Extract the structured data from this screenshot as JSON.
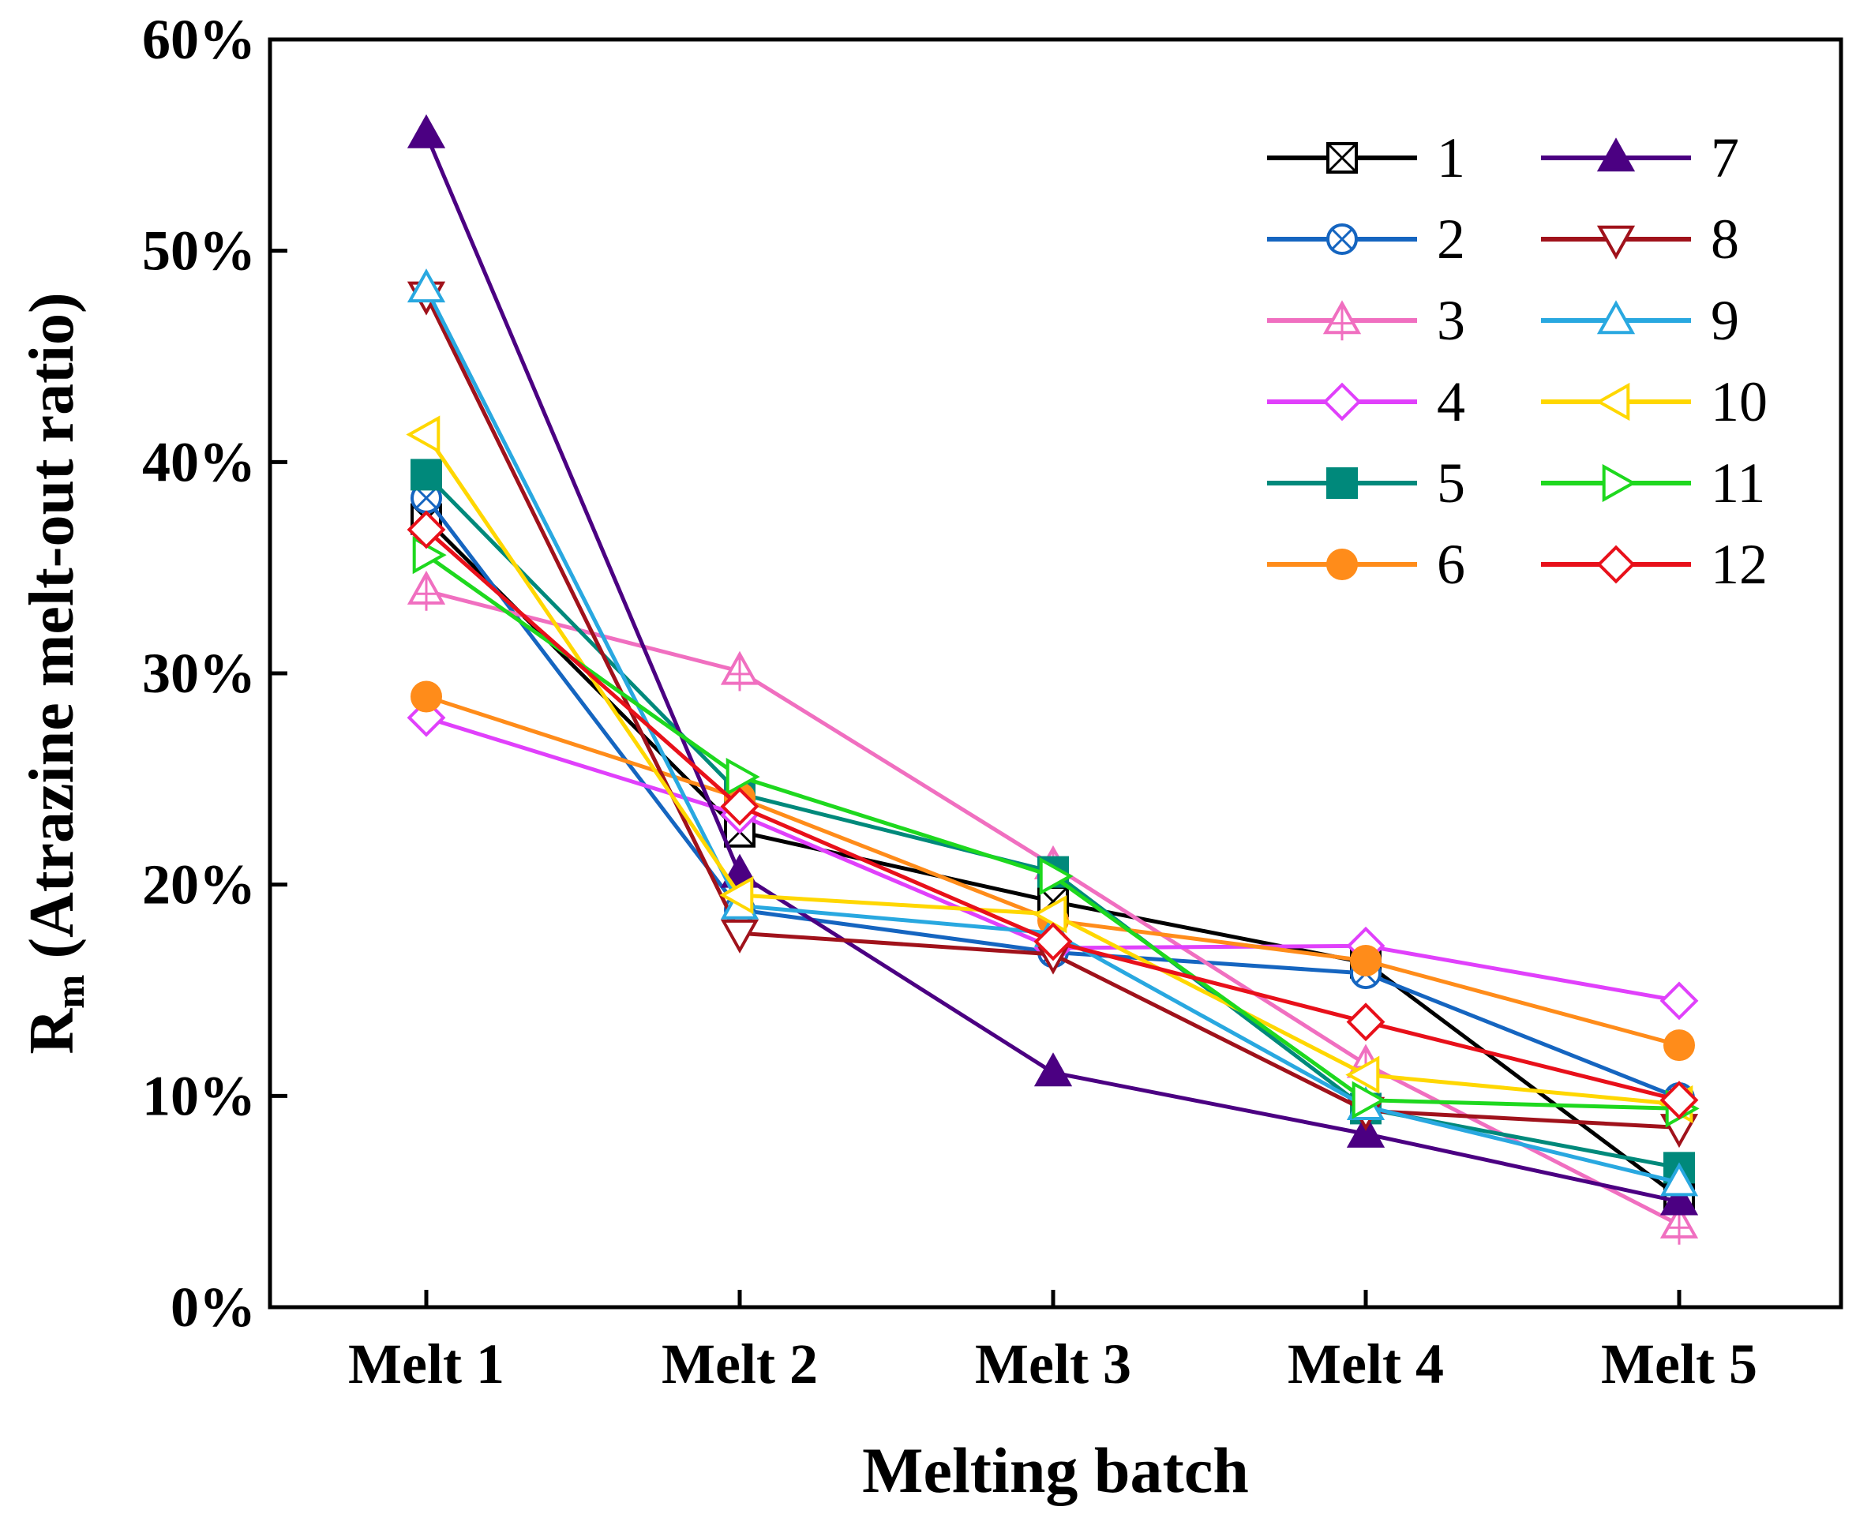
{
  "chart_data": {
    "type": "line",
    "title": "",
    "xlabel": "Melting batch",
    "ylabel_main": "R",
    "ylabel_sub": "m",
    "ylabel_rest": " (Atrazine melt-out ratio)",
    "categories": [
      "Melt 1",
      "Melt 2",
      "Melt 3",
      "Melt 4",
      "Melt 5"
    ],
    "ylim": [
      0,
      60
    ],
    "yticks": [
      0,
      10,
      20,
      30,
      40,
      50,
      60
    ],
    "ytick_labels": [
      "0%",
      "10%",
      "20%",
      "30%",
      "40%",
      "50%",
      "60%"
    ],
    "grid": false,
    "legend_position": "top-right",
    "series": [
      {
        "name": "1",
        "color": "#000000",
        "marker": "square-x",
        "values": [
          37.3,
          22.5,
          19.2,
          16.3,
          5.2
        ]
      },
      {
        "name": "2",
        "color": "#1565C0",
        "marker": "circle-x",
        "values": [
          38.3,
          18.8,
          16.8,
          15.8,
          9.9
        ]
      },
      {
        "name": "3",
        "color": "#F06FC0",
        "marker": "triangle-cross",
        "values": [
          33.9,
          30.1,
          20.9,
          11.5,
          3.9
        ]
      },
      {
        "name": "4",
        "color": "#E040FB",
        "marker": "diamond",
        "values": [
          27.9,
          23.3,
          17.0,
          17.1,
          14.5
        ]
      },
      {
        "name": "5",
        "color": "#00897B",
        "marker": "square-filled",
        "values": [
          39.4,
          24.3,
          20.6,
          9.4,
          6.6
        ]
      },
      {
        "name": "6",
        "color": "#FF8C1A",
        "marker": "circle-filled",
        "values": [
          28.9,
          24.1,
          18.3,
          16.4,
          12.4
        ]
      },
      {
        "name": "7",
        "color": "#4B0082",
        "marker": "triangle-filled",
        "values": [
          55.5,
          20.5,
          11.1,
          8.2,
          5.0
        ]
      },
      {
        "name": "8",
        "color": "#A0121B",
        "marker": "triangle-down",
        "values": [
          47.9,
          17.7,
          16.7,
          9.3,
          8.5
        ]
      },
      {
        "name": "9",
        "color": "#29A8E0",
        "marker": "triangle-up",
        "values": [
          48.2,
          19.0,
          17.7,
          9.5,
          5.9
        ]
      },
      {
        "name": "10",
        "color": "#FFD700",
        "marker": "triangle-left",
        "values": [
          41.3,
          19.5,
          18.6,
          11.0,
          9.6
        ]
      },
      {
        "name": "11",
        "color": "#1ED81E",
        "marker": "triangle-right",
        "values": [
          35.6,
          25.1,
          20.4,
          9.8,
          9.4
        ]
      },
      {
        "name": "12",
        "color": "#E8101A",
        "marker": "diamond",
        "values": [
          36.8,
          23.7,
          17.3,
          13.5,
          9.8
        ]
      }
    ]
  }
}
